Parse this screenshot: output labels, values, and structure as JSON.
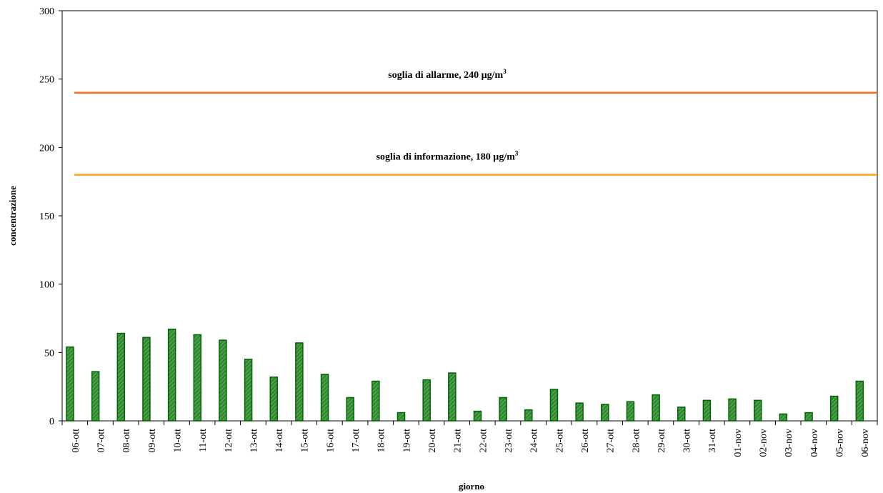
{
  "chart_data": {
    "type": "bar",
    "categories": [
      "06-ott",
      "07-ott",
      "08-ott",
      "09-ott",
      "10-ott",
      "11-ott",
      "12-ott",
      "13-ott",
      "14-ott",
      "15-ott",
      "16-ott",
      "17-ott",
      "18-ott",
      "19-ott",
      "20-ott",
      "21-ott",
      "22-ott",
      "23-ott",
      "24-ott",
      "25-ott",
      "26-ott",
      "27-ott",
      "28-ott",
      "29-ott",
      "30-ott",
      "31-ott",
      "01-nov",
      "02-nov",
      "03-nov",
      "04-nov",
      "05-nov",
      "06-nov"
    ],
    "values": [
      54,
      36,
      64,
      61,
      67,
      63,
      59,
      45,
      32,
      57,
      34,
      17,
      29,
      6,
      30,
      35,
      7,
      17,
      8,
      23,
      13,
      12,
      14,
      19,
      10,
      15,
      16,
      15,
      5,
      6,
      18,
      29
    ],
    "xlabel": "giorno",
    "ylabel": "concentrazione",
    "ylim": [
      0,
      300
    ],
    "yticks": [
      0,
      50,
      100,
      150,
      200,
      250,
      300
    ],
    "grid": false,
    "bar_color": "#2e8b2e",
    "bar_edge_color": "#006400",
    "thresholds": [
      {
        "value": 240,
        "label": "soglia di allarme,   240 µg/m",
        "sup": "3",
        "color": "#ff6a1a"
      },
      {
        "value": 180,
        "label": "soglia di informazione,  180 µg/m",
        "sup": "3",
        "color": "#ffa31a"
      }
    ]
  }
}
